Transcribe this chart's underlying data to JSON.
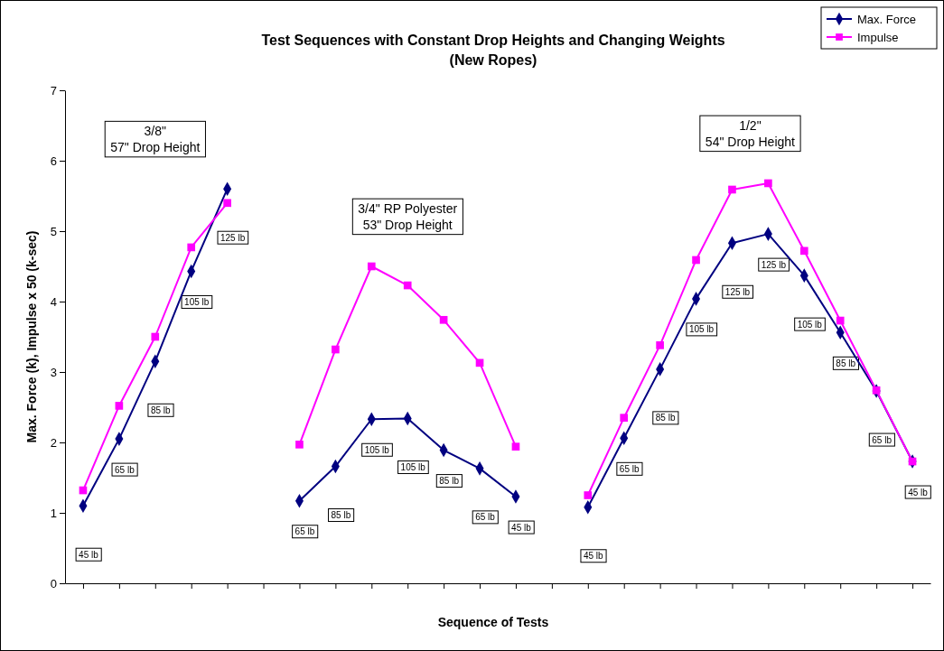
{
  "chart_data": {
    "type": "line",
    "title": "Test Sequences with Constant Drop Heights and Changing Weights\n(New Ropes)",
    "xlabel": "Sequence of Tests",
    "ylabel": "Max. Force (k), Impulse x 50 (k-sec)",
    "categories": [
      null,
      null,
      null,
      null,
      null,
      null,
      null,
      null,
      null,
      null,
      null,
      null,
      null,
      null,
      null,
      null,
      null,
      null,
      null,
      null,
      null,
      null,
      null,
      null
    ],
    "ylim": [
      0,
      7
    ],
    "yticks": [
      0,
      1,
      2,
      3,
      4,
      5,
      6,
      7
    ],
    "grid": false,
    "legend": "top right",
    "line_style": "solid",
    "series": [
      {
        "name": "Max. Force",
        "color": "#000080",
        "marker": "diamond",
        "values": [
          1.1,
          2.05,
          3.15,
          4.43,
          5.6,
          null,
          1.17,
          1.66,
          2.33,
          2.34,
          1.89,
          1.63,
          1.23,
          null,
          1.08,
          2.06,
          3.04,
          4.04,
          4.83,
          4.96,
          4.37,
          3.56,
          2.73,
          1.73
        ]
      },
      {
        "name": "Impulse",
        "color": "#ff00ff",
        "marker": "square",
        "values": [
          1.32,
          2.52,
          3.5,
          4.77,
          5.4,
          null,
          1.97,
          3.32,
          4.5,
          4.23,
          3.74,
          3.13,
          1.94,
          null,
          1.25,
          2.35,
          3.38,
          4.59,
          5.59,
          5.68,
          4.72,
          3.73,
          2.74,
          1.73
        ]
      }
    ],
    "annotations": [
      "3/8\"\n57\" Drop Height",
      "3/4\" RP Polyester\n53\" Drop Height",
      "1/2\"\n54\" Drop Height",
      "45 lb",
      "65 lb",
      "85 lb",
      "105 lb",
      "125 lb",
      "65 lb",
      "85 lb",
      "105 lb",
      "105 lb",
      "85 lb",
      "65 lb",
      "45 lb",
      "45 lb",
      "65 lb",
      "85 lb",
      "105 lb",
      "125 lb",
      "125 lb",
      "105 lb",
      "85 lb",
      "65 lb",
      "45 lb"
    ]
  }
}
